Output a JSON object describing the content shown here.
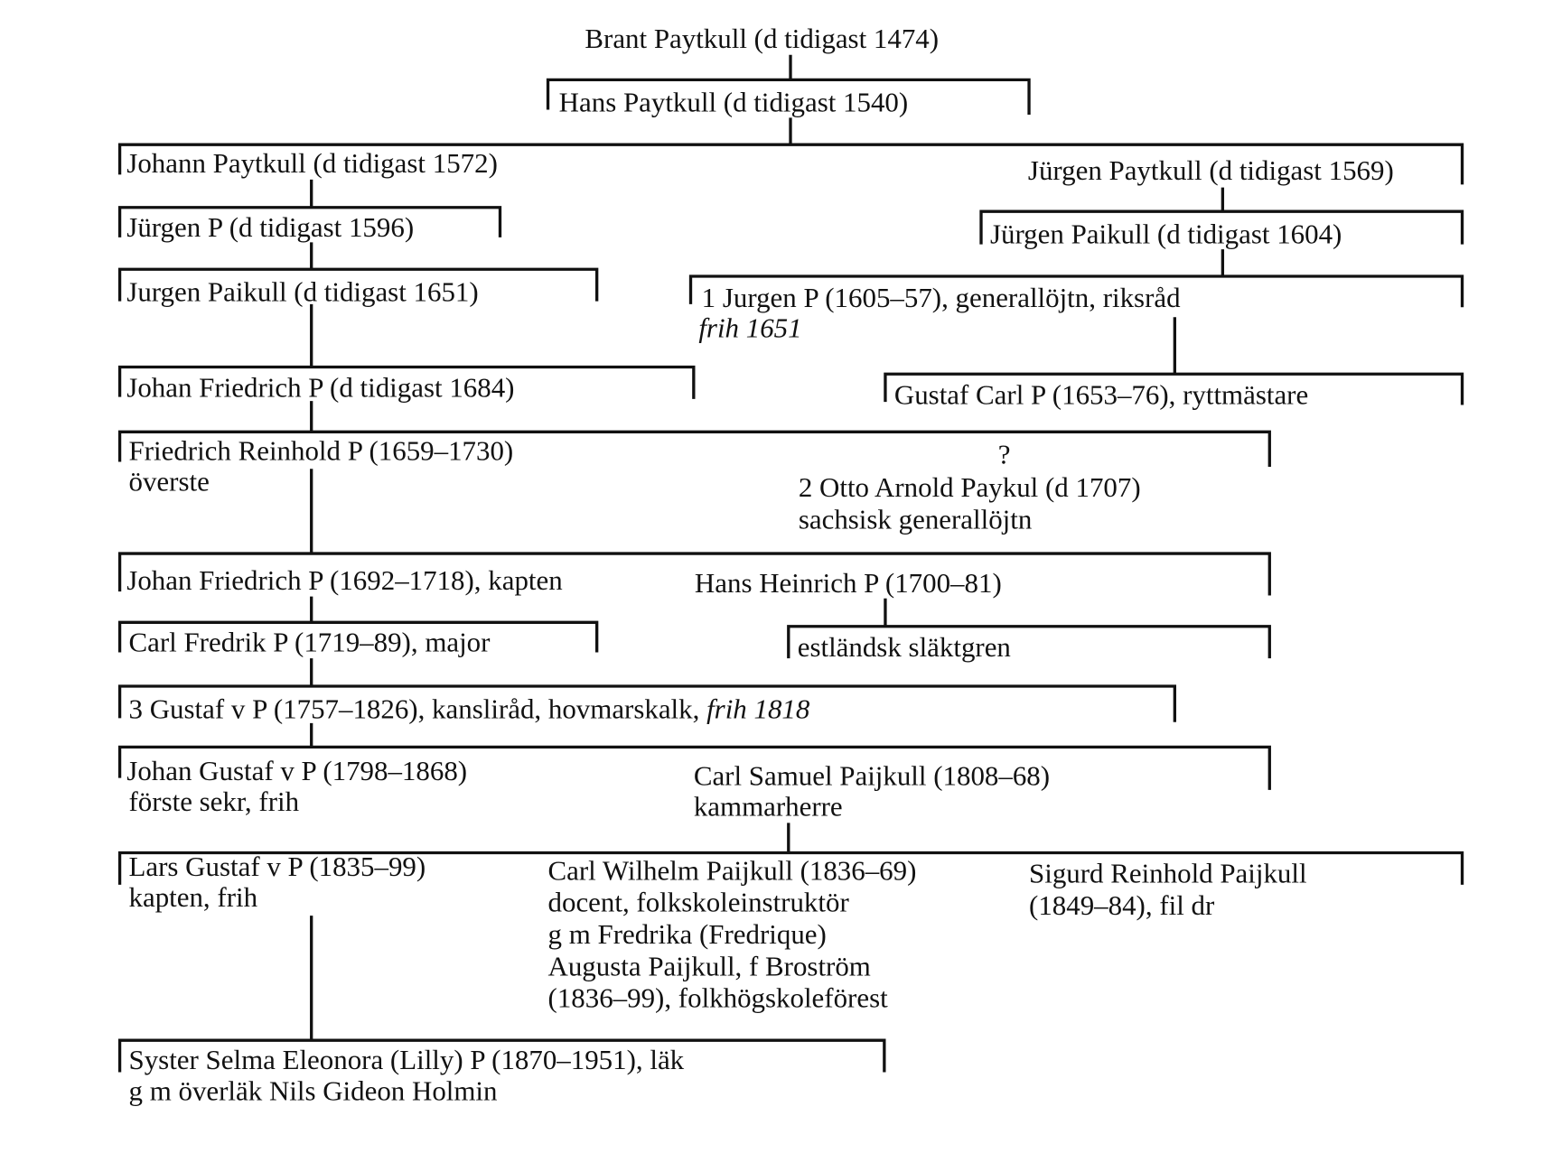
{
  "tree": {
    "brant": "Brant Paytkull (d tidigast 1474)",
    "hans": "Hans Paytkull (d tidigast 1540)",
    "johann": "Johann Paytkull (d tidigast 1572)",
    "jurgen_paytkull": "Jürgen Paytkull (d tidigast 1569)",
    "jurgen_p_1596": "Jürgen P (d tidigast 1596)",
    "jurgen_paikull_1604": "Jürgen Paikull (d tidigast 1604)",
    "jurgen_paikull_1651": "Jurgen Paikull (d tidigast 1651)",
    "jurgen_p_1605": [
      "1 Jurgen P (1605–57), generallöjtn, riksråd",
      "frih 1651"
    ],
    "johan_friedrich_1684": "Johan Friedrich P (d tidigast 1684)",
    "gustaf_carl": "Gustaf Carl P (1653–76), ryttmästare",
    "friedrich_reinhold": [
      "Friedrich Reinhold P (1659–1730)",
      "överste"
    ],
    "uncertain_mark": "?",
    "otto_arnold": [
      "2 Otto Arnold Paykul (d 1707)",
      "sachsisk generallöjtn"
    ],
    "johan_friedrich_1692": "Johan Friedrich P (1692–1718), kapten",
    "hans_heinrich": "Hans Heinrich P (1700–81)",
    "carl_fredrik": "Carl Fredrik P (1719–89), major",
    "estlandsk": "estländsk släktgren",
    "gustaf_v_p": [
      "3 Gustaf v P (1757–1826), kansliråd, hovmarskalk, ",
      "frih 1818"
    ],
    "johan_gustaf": [
      "Johan Gustaf v P (1798–1868)",
      "förste sekr, frih"
    ],
    "carl_samuel": [
      "Carl Samuel Paijkull (1808–68)",
      "kammarherre"
    ],
    "lars_gustaf": [
      "Lars Gustaf v P (1835–99)",
      "kapten, frih"
    ],
    "carl_wilhelm": [
      "Carl Wilhelm Paijkull (1836–69)",
      "docent, folkskoleinstruktör",
      "g m Fredrika (Fredrique)",
      "Augusta Paijkull, f Broström",
      "(1836–99), folkhögskoleförest"
    ],
    "sigurd": [
      "Sigurd Reinhold Paijkull",
      "(1849–84), fil dr"
    ],
    "selma": [
      "Syster Selma Eleonora (Lilly) P (1870–1951), läk",
      "g m överläk Nils Gideon Holmin"
    ]
  }
}
